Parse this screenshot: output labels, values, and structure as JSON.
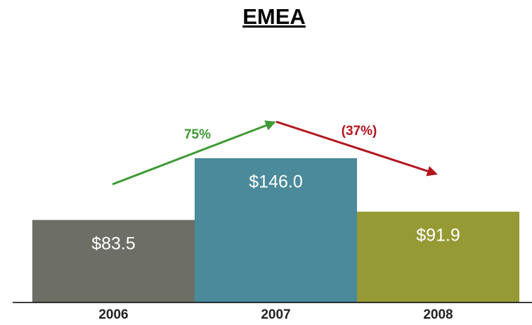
{
  "chart_data": {
    "type": "bar",
    "title": "EMEA",
    "categories": [
      "2006",
      "2007",
      "2008"
    ],
    "values": [
      83.5,
      146.0,
      91.9
    ],
    "value_labels": [
      "$83.5",
      "$146.0",
      "$91.9"
    ],
    "colors": [
      "#6d6f67",
      "#4a8a9a",
      "#969a35"
    ],
    "ylim": [
      0,
      200
    ],
    "annotations": [
      {
        "text": "75%",
        "color": "#3e9a34"
      },
      {
        "text": "(37%)",
        "color": "#b3141e"
      }
    ]
  }
}
